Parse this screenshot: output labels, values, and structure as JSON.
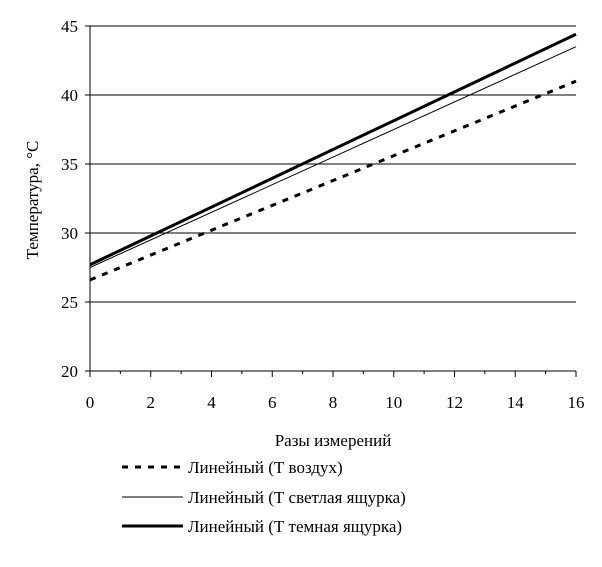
{
  "chart_data": {
    "type": "line",
    "title": "",
    "xlabel": "Разы измерений",
    "ylabel": "Температура, °С",
    "xlim": [
      0,
      16
    ],
    "ylim": [
      20,
      45
    ],
    "xticks": [
      "0",
      "2",
      "4",
      "6",
      "8",
      "10",
      "12",
      "14",
      "16"
    ],
    "yticks": [
      "20",
      "25",
      "30",
      "35",
      "40",
      "45"
    ],
    "grid": "horizontal",
    "legend_position": "bottom",
    "series": [
      {
        "name": "Линейный (Т воздух)",
        "style": "dashed",
        "stroke": "#000000",
        "x": [
          0,
          16
        ],
        "y": [
          26.6,
          41.0
        ]
      },
      {
        "name": "Линейный (Т светлая ящурка)",
        "style": "thin",
        "stroke": "#000000",
        "x": [
          0,
          16
        ],
        "y": [
          27.5,
          43.5
        ]
      },
      {
        "name": "Линейный (Т темная ящурка)",
        "style": "thick",
        "stroke": "#000000",
        "x": [
          0,
          16
        ],
        "y": [
          27.7,
          44.4
        ]
      }
    ]
  }
}
